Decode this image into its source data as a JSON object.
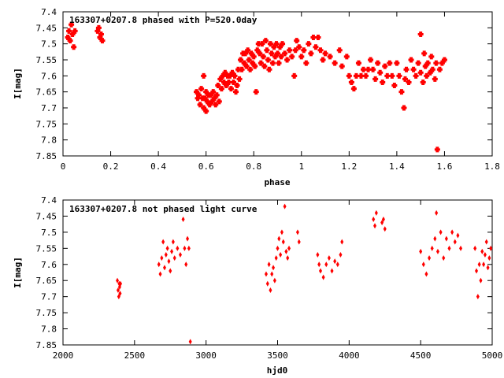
{
  "chart_data": [
    {
      "type": "scatter",
      "title": "163307+0207.8 phased with P=520.0day",
      "xlabel": "phase",
      "ylabel": "I[mag]",
      "xlim": [
        0,
        1.8
      ],
      "ylim": [
        7.4,
        7.85
      ],
      "y_inverted": true,
      "xticks": [
        "0",
        "0.2",
        "0.4",
        "0.6",
        "0.8",
        "1",
        "1.2",
        "1.4",
        "1.6",
        "1.8"
      ],
      "yticks": [
        "7.4",
        "7.45",
        "7.5",
        "7.55",
        "7.6",
        "7.65",
        "7.7",
        "7.75",
        "7.8",
        "7.85"
      ],
      "grid": false,
      "marker_color": "#ff0000",
      "series": [
        {
          "points": [
            [
              0.02,
              7.48
            ],
            [
              0.025,
              7.46
            ],
            [
              0.03,
              7.49
            ],
            [
              0.035,
              7.44
            ],
            [
              0.04,
              7.47
            ],
            [
              0.045,
              7.51
            ],
            [
              0.05,
              7.46
            ],
            [
              0.145,
              7.46
            ],
            [
              0.15,
              7.45
            ],
            [
              0.155,
              7.48
            ],
            [
              0.16,
              7.47
            ],
            [
              0.165,
              7.49
            ],
            [
              0.56,
              7.65
            ],
            [
              0.565,
              7.67
            ],
            [
              0.57,
              7.66
            ],
            [
              0.575,
              7.69
            ],
            [
              0.58,
              7.64
            ],
            [
              0.585,
              7.67
            ],
            [
              0.59,
              7.6
            ],
            [
              0.59,
              7.7
            ],
            [
              0.595,
              7.67
            ],
            [
              0.6,
              7.71
            ],
            [
              0.6,
              7.65
            ],
            [
              0.605,
              7.68
            ],
            [
              0.61,
              7.66
            ],
            [
              0.615,
              7.69
            ],
            [
              0.62,
              7.66
            ],
            [
              0.625,
              7.68
            ],
            [
              0.63,
              7.65
            ],
            [
              0.635,
              7.67
            ],
            [
              0.64,
              7.69
            ],
            [
              0.645,
              7.66
            ],
            [
              0.65,
              7.63
            ],
            [
              0.655,
              7.68
            ],
            [
              0.66,
              7.61
            ],
            [
              0.665,
              7.64
            ],
            [
              0.67,
              7.6
            ],
            [
              0.675,
              7.62
            ],
            [
              0.68,
              7.59
            ],
            [
              0.685,
              7.63
            ],
            [
              0.69,
              7.6
            ],
            [
              0.695,
              7.62
            ],
            [
              0.7,
              7.6
            ],
            [
              0.705,
              7.64
            ],
            [
              0.71,
              7.59
            ],
            [
              0.715,
              7.62
            ],
            [
              0.72,
              7.6
            ],
            [
              0.725,
              7.65
            ],
            [
              0.73,
              7.63
            ],
            [
              0.735,
              7.58
            ],
            [
              0.74,
              7.61
            ],
            [
              0.745,
              7.55
            ],
            [
              0.75,
              7.58
            ],
            [
              0.755,
              7.53
            ],
            [
              0.76,
              7.56
            ],
            [
              0.765,
              7.53
            ],
            [
              0.77,
              7.57
            ],
            [
              0.775,
              7.52
            ],
            [
              0.78,
              7.55
            ],
            [
              0.785,
              7.58
            ],
            [
              0.79,
              7.53
            ],
            [
              0.795,
              7.56
            ],
            [
              0.8,
              7.54
            ],
            [
              0.805,
              7.57
            ],
            [
              0.81,
              7.65
            ],
            [
              0.815,
              7.52
            ],
            [
              0.82,
              7.5
            ],
            [
              0.825,
              7.53
            ],
            [
              0.83,
              7.56
            ],
            [
              0.835,
              7.5
            ],
            [
              0.84,
              7.54
            ],
            [
              0.845,
              7.57
            ],
            [
              0.85,
              7.49
            ],
            [
              0.855,
              7.52
            ],
            [
              0.86,
              7.55
            ],
            [
              0.865,
              7.58
            ],
            [
              0.87,
              7.5
            ],
            [
              0.875,
              7.53
            ],
            [
              0.88,
              7.56
            ],
            [
              0.885,
              7.51
            ],
            [
              0.89,
              7.54
            ],
            [
              0.895,
              7.5
            ],
            [
              0.9,
              7.53
            ],
            [
              0.905,
              7.56
            ],
            [
              0.91,
              7.51
            ],
            [
              0.915,
              7.54
            ],
            [
              0.92,
              7.5
            ],
            [
              0.93,
              7.53
            ],
            [
              0.94,
              7.55
            ],
            [
              0.95,
              7.52
            ],
            [
              0.96,
              7.54
            ],
            [
              0.97,
              7.6
            ],
            [
              0.975,
              7.52
            ],
            [
              0.98,
              7.49
            ],
            [
              0.99,
              7.51
            ],
            [
              1.0,
              7.54
            ],
            [
              1.01,
              7.52
            ],
            [
              1.02,
              7.56
            ],
            [
              1.03,
              7.5
            ],
            [
              1.04,
              7.53
            ],
            [
              1.05,
              7.48
            ],
            [
              1.06,
              7.51
            ],
            [
              1.07,
              7.48
            ],
            [
              1.08,
              7.52
            ],
            [
              1.09,
              7.55
            ],
            [
              1.1,
              7.53
            ],
            [
              1.12,
              7.54
            ],
            [
              1.14,
              7.56
            ],
            [
              1.16,
              7.52
            ],
            [
              1.17,
              7.57
            ],
            [
              1.19,
              7.54
            ],
            [
              1.2,
              7.6
            ],
            [
              1.21,
              7.62
            ],
            [
              1.22,
              7.64
            ],
            [
              1.23,
              7.6
            ],
            [
              1.24,
              7.56
            ],
            [
              1.25,
              7.6
            ],
            [
              1.26,
              7.58
            ],
            [
              1.27,
              7.6
            ],
            [
              1.28,
              7.58
            ],
            [
              1.29,
              7.55
            ],
            [
              1.3,
              7.58
            ],
            [
              1.31,
              7.61
            ],
            [
              1.32,
              7.56
            ],
            [
              1.33,
              7.59
            ],
            [
              1.34,
              7.62
            ],
            [
              1.35,
              7.57
            ],
            [
              1.36,
              7.6
            ],
            [
              1.37,
              7.56
            ],
            [
              1.38,
              7.6
            ],
            [
              1.39,
              7.63
            ],
            [
              1.4,
              7.56
            ],
            [
              1.41,
              7.6
            ],
            [
              1.42,
              7.65
            ],
            [
              1.43,
              7.7
            ],
            [
              1.435,
              7.61
            ],
            [
              1.44,
              7.58
            ],
            [
              1.45,
              7.62
            ],
            [
              1.46,
              7.55
            ],
            [
              1.47,
              7.58
            ],
            [
              1.48,
              7.6
            ],
            [
              1.49,
              7.56
            ],
            [
              1.5,
              7.59
            ],
            [
              1.5,
              7.47
            ],
            [
              1.51,
              7.62
            ],
            [
              1.515,
              7.53
            ],
            [
              1.52,
              7.57
            ],
            [
              1.525,
              7.6
            ],
            [
              1.53,
              7.56
            ],
            [
              1.54,
              7.59
            ],
            [
              1.545,
              7.54
            ],
            [
              1.55,
              7.58
            ],
            [
              1.56,
              7.61
            ],
            [
              1.565,
              7.56
            ],
            [
              1.57,
              7.83
            ],
            [
              1.58,
              7.58
            ],
            [
              1.59,
              7.56
            ],
            [
              1.6,
              7.55
            ]
          ]
        }
      ]
    },
    {
      "type": "scatter",
      "title": "163307+0207.8 not phased light curve",
      "xlabel": "hjd0",
      "ylabel": "I[mag]",
      "xlim": [
        2000,
        5000
      ],
      "ylim": [
        7.4,
        7.85
      ],
      "y_inverted": true,
      "xticks": [
        "2000",
        "2500",
        "3000",
        "3500",
        "4000",
        "4500",
        "5000"
      ],
      "yticks": [
        "7.4",
        "7.45",
        "7.5",
        "7.55",
        "7.6",
        "7.65",
        "7.7",
        "7.75",
        "7.8",
        "7.85"
      ],
      "grid": false,
      "marker_color": "#ff0000",
      "series": [
        {
          "points": [
            [
              2380,
              7.65
            ],
            [
              2385,
              7.68
            ],
            [
              2390,
              7.7
            ],
            [
              2393,
              7.66
            ],
            [
              2396,
              7.67
            ],
            [
              2399,
              7.69
            ],
            [
              2402,
              7.66
            ],
            [
              2670,
              7.6
            ],
            [
              2680,
              7.63
            ],
            [
              2690,
              7.58
            ],
            [
              2700,
              7.53
            ],
            [
              2710,
              7.61
            ],
            [
              2720,
              7.57
            ],
            [
              2730,
              7.55
            ],
            [
              2740,
              7.59
            ],
            [
              2750,
              7.62
            ],
            [
              2760,
              7.56
            ],
            [
              2770,
              7.53
            ],
            [
              2780,
              7.58
            ],
            [
              2800,
              7.55
            ],
            [
              2820,
              7.57
            ],
            [
              2840,
              7.46
            ],
            [
              2850,
              7.55
            ],
            [
              2860,
              7.6
            ],
            [
              2870,
              7.52
            ],
            [
              2880,
              7.55
            ],
            [
              2890,
              7.84
            ],
            [
              3420,
              7.63
            ],
            [
              3430,
              7.66
            ],
            [
              3440,
              7.6
            ],
            [
              3450,
              7.68
            ],
            [
              3460,
              7.63
            ],
            [
              3470,
              7.61
            ],
            [
              3480,
              7.65
            ],
            [
              3490,
              7.58
            ],
            [
              3500,
              7.55
            ],
            [
              3510,
              7.52
            ],
            [
              3520,
              7.57
            ],
            [
              3530,
              7.5
            ],
            [
              3540,
              7.53
            ],
            [
              3550,
              7.42
            ],
            [
              3560,
              7.56
            ],
            [
              3570,
              7.58
            ],
            [
              3580,
              7.55
            ],
            [
              3640,
              7.5
            ],
            [
              3650,
              7.53
            ],
            [
              3780,
              7.57
            ],
            [
              3790,
              7.6
            ],
            [
              3800,
              7.62
            ],
            [
              3820,
              7.64
            ],
            [
              3840,
              7.6
            ],
            [
              3860,
              7.58
            ],
            [
              3880,
              7.62
            ],
            [
              3900,
              7.59
            ],
            [
              3920,
              7.6
            ],
            [
              3940,
              7.57
            ],
            [
              3950,
              7.53
            ],
            [
              4170,
              7.46
            ],
            [
              4180,
              7.48
            ],
            [
              4190,
              7.44
            ],
            [
              4230,
              7.47
            ],
            [
              4240,
              7.46
            ],
            [
              4250,
              7.49
            ],
            [
              4500,
              7.56
            ],
            [
              4520,
              7.6
            ],
            [
              4540,
              7.63
            ],
            [
              4560,
              7.58
            ],
            [
              4580,
              7.55
            ],
            [
              4600,
              7.52
            ],
            [
              4610,
              7.44
            ],
            [
              4620,
              7.56
            ],
            [
              4640,
              7.5
            ],
            [
              4660,
              7.58
            ],
            [
              4680,
              7.52
            ],
            [
              4700,
              7.55
            ],
            [
              4720,
              7.5
            ],
            [
              4740,
              7.53
            ],
            [
              4760,
              7.51
            ],
            [
              4780,
              7.55
            ],
            [
              4880,
              7.55
            ],
            [
              4890,
              7.62
            ],
            [
              4900,
              7.7
            ],
            [
              4910,
              7.6
            ],
            [
              4920,
              7.65
            ],
            [
              4930,
              7.56
            ],
            [
              4940,
              7.6
            ],
            [
              4950,
              7.57
            ],
            [
              4960,
              7.53
            ],
            [
              4970,
              7.61
            ],
            [
              4980,
              7.58
            ],
            [
              4990,
              7.55
            ]
          ]
        }
      ]
    }
  ]
}
